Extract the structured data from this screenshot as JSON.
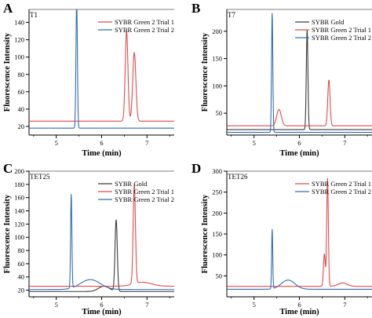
{
  "colors": {
    "sybr_gold": "#3a3a3a",
    "trial1": "#e24b4b",
    "trial2": "#2f6db5",
    "axis": "#000000"
  },
  "chart_data": [
    {
      "panel": "A",
      "name": "T1",
      "type": "line",
      "xlabel": "Time (min)",
      "ylabel": "Fluorescence Intensity",
      "xlim": [
        4.4,
        7.6
      ],
      "ylim": [
        10,
        155
      ],
      "xticks": [
        5,
        6,
        7
      ],
      "yticks": [
        20,
        40,
        60,
        80,
        100,
        120,
        140
      ],
      "legend_position": "top-right",
      "legend": [
        "SYBR Green 2 Trial 1",
        "SYBR Green 2 Trial 2"
      ],
      "series": [
        {
          "name": "SYBR Green 2 Trial 1",
          "color_key": "trial1",
          "baseline": 26,
          "peaks": [
            [
              6.55,
              104,
              0.03
            ],
            [
              6.72,
              79,
              0.035
            ]
          ]
        },
        {
          "name": "SYBR Green 2 Trial 2",
          "color_key": "trial2",
          "baseline": 18,
          "peaks": [
            [
              5.45,
              148,
              0.016
            ]
          ]
        }
      ]
    },
    {
      "panel": "B",
      "name": "T7",
      "type": "line",
      "xlabel": "Time (min)",
      "ylabel": "Fluorescence Intensity",
      "xlim": [
        4.4,
        7.6
      ],
      "ylim": [
        10,
        240
      ],
      "xticks": [
        5,
        6,
        7
      ],
      "yticks": [
        50,
        100,
        150,
        200
      ],
      "legend_position": "top-right",
      "legend": [
        "SYBR Gold",
        "SYBR Green 2 Trial 1",
        "SYBR Green 2 Trial 2"
      ],
      "series": [
        {
          "name": "SYBR Gold",
          "color_key": "sybr_gold",
          "baseline": 20,
          "peaks": [
            [
              6.17,
              182,
              0.018
            ]
          ]
        },
        {
          "name": "SYBR Green 2 Trial 1",
          "color_key": "trial1",
          "baseline": 27,
          "peaks": [
            [
              6.65,
              84,
              0.025
            ],
            [
              5.55,
              30,
              0.05
            ]
          ]
        },
        {
          "name": "SYBR Green 2 Trial 2",
          "color_key": "trial2",
          "baseline": 15,
          "peaks": [
            [
              5.4,
              218,
              0.014
            ]
          ]
        }
      ]
    },
    {
      "panel": "C",
      "name": "TET25",
      "type": "line",
      "xlabel": "Time (min)",
      "ylabel": "Fluorescence Intensity",
      "xlim": [
        4.4,
        7.6
      ],
      "ylim": [
        10,
        200
      ],
      "xticks": [
        5,
        6,
        7
      ],
      "yticks": [
        20,
        40,
        60,
        80,
        100,
        120,
        140,
        160,
        180,
        200
      ],
      "legend_position": "top-right",
      "legend": [
        "SYBR Gold",
        "SYBR Green 2 Trial 1",
        "SYBR Green 2 Trial 2"
      ],
      "series": [
        {
          "name": "SYBR Gold",
          "color_key": "sybr_gold",
          "baseline": 18,
          "peaks": [
            [
              6.32,
              108,
              0.025
            ],
            [
              6.05,
              8,
              0.12
            ]
          ]
        },
        {
          "name": "SYBR Green 2 Trial 1",
          "color_key": "trial1",
          "baseline": 26,
          "peaks": [
            [
              6.72,
              150,
              0.025
            ],
            [
              6.9,
              6,
              0.2
            ]
          ]
        },
        {
          "name": "SYBR Green 2 Trial 2",
          "color_key": "trial2",
          "baseline": 21,
          "peaks": [
            [
              5.33,
              142,
              0.014
            ],
            [
              5.75,
              15,
              0.22
            ]
          ]
        }
      ]
    },
    {
      "panel": "D",
      "name": "TET26",
      "type": "line",
      "xlabel": "Time (min)",
      "ylabel": "Fluorescence Intensity",
      "xlim": [
        4.4,
        7.6
      ],
      "ylim": [
        0,
        300
      ],
      "xticks": [
        5,
        6,
        7
      ],
      "yticks": [
        50,
        100,
        150,
        200,
        250,
        300
      ],
      "legend_position": "top-right",
      "legend": [
        "SYBR Green 2 Trial 1",
        "SYBR Green 2 Trial 2"
      ],
      "series": [
        {
          "name": "SYBR Green 2 Trial 1",
          "color_key": "trial1",
          "baseline": 25,
          "peaks": [
            [
              6.62,
              258,
              0.018
            ],
            [
              6.55,
              78,
              0.02
            ],
            [
              6.95,
              8,
              0.1
            ]
          ]
        },
        {
          "name": "SYBR Green 2 Trial 2",
          "color_key": "trial2",
          "baseline": 18,
          "peaks": [
            [
              5.4,
              142,
              0.012
            ],
            [
              5.75,
              22,
              0.15
            ]
          ]
        }
      ]
    }
  ]
}
